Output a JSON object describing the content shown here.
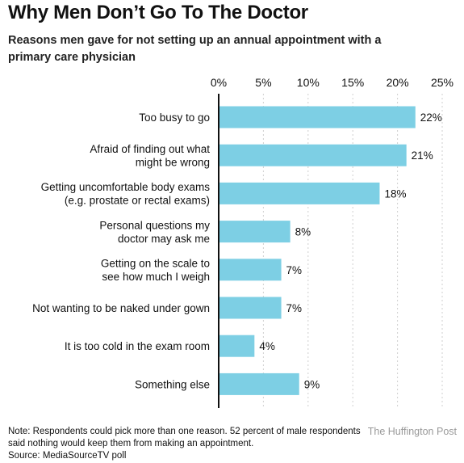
{
  "header": {
    "title": "Why Men Don’t Go To The Doctor",
    "subtitle": "Reasons men gave for not setting up an annual appointment with a primary care physician"
  },
  "chart_data": {
    "type": "bar",
    "orientation": "horizontal",
    "categories": [
      [
        "Too busy to go"
      ],
      [
        "Afraid of finding out what",
        "might be wrong"
      ],
      [
        "Getting uncomfortable body exams",
        "(e.g. prostate or rectal exams)"
      ],
      [
        "Personal questions my",
        "doctor may ask me"
      ],
      [
        "Getting on the scale to",
        "see how much I weigh"
      ],
      [
        "Not wanting to be naked under gown"
      ],
      [
        "It is too cold in the exam room"
      ],
      [
        "Something else"
      ]
    ],
    "values": [
      22,
      21,
      18,
      8,
      7,
      7,
      4,
      9
    ],
    "value_labels": [
      "22%",
      "21%",
      "18%",
      "8%",
      "7%",
      "7%",
      "4%",
      "9%"
    ],
    "x_ticks": [
      0,
      5,
      10,
      15,
      20,
      25
    ],
    "x_tick_labels": [
      "0%",
      "5%",
      "10%",
      "15%",
      "20%",
      "25%"
    ],
    "xlim": [
      0,
      25
    ],
    "grid": true,
    "bar_color": "#7dcfe4",
    "grid_color": "#cfcfcf"
  },
  "footer": {
    "note_lines": [
      "Note: Respondents could pick more than one reason. 52 percent of male respondents",
      "said nothing would keep them from making an appointment."
    ],
    "source": "Source: MediaSourceTV poll",
    "credit": "The Huffington Post"
  }
}
